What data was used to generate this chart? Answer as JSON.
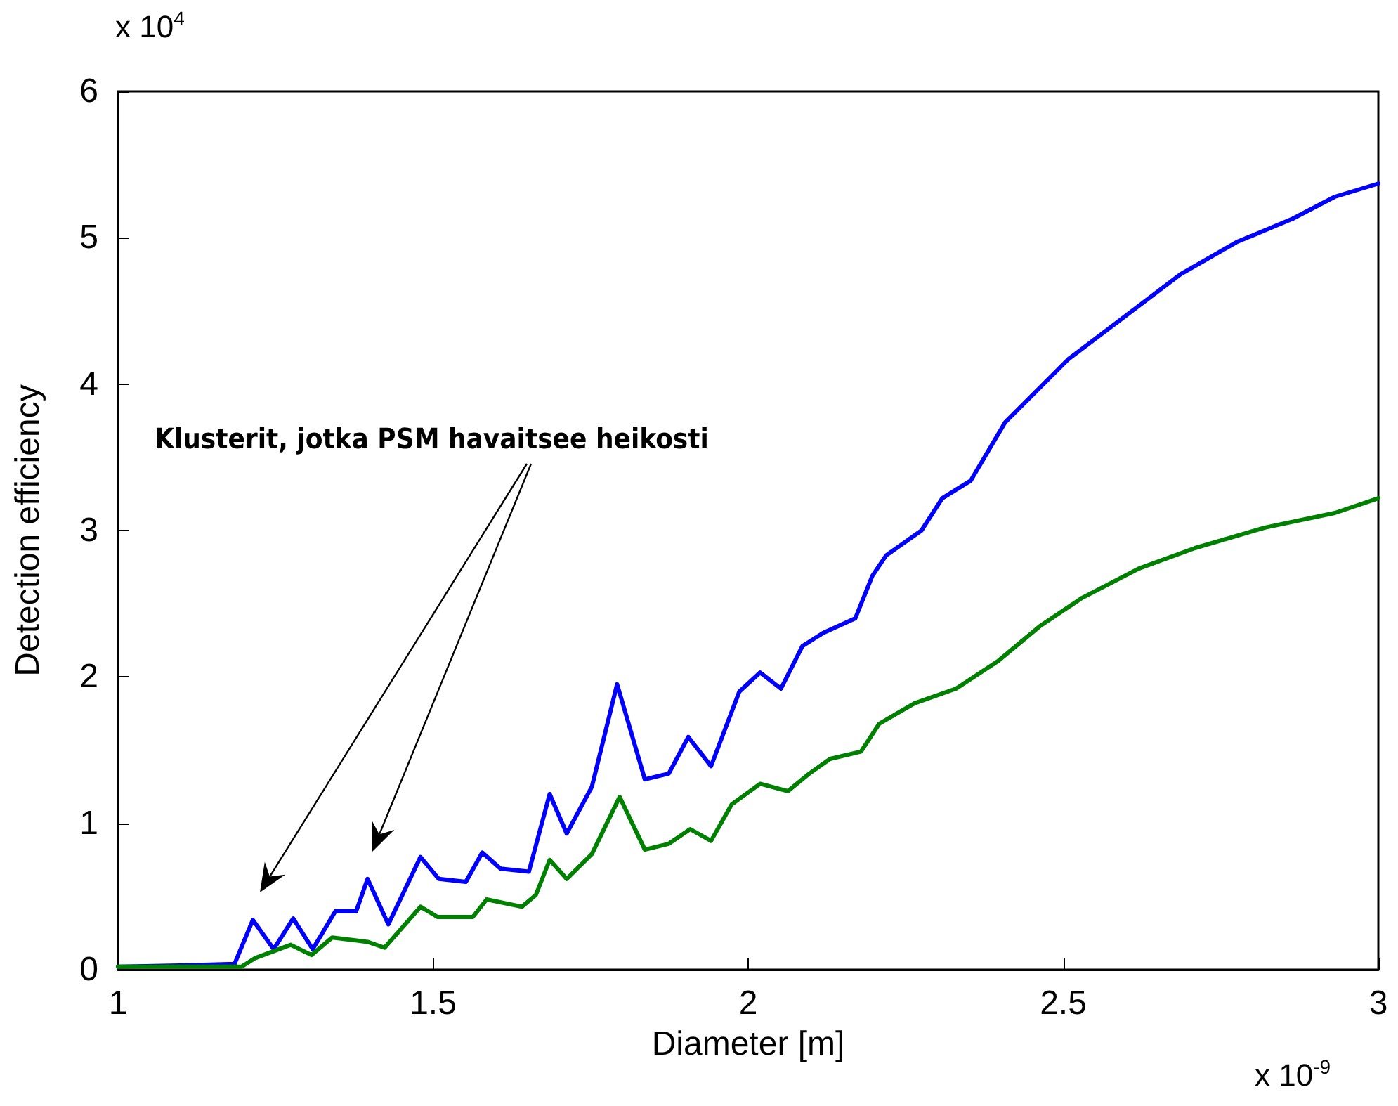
{
  "chart_data": {
    "type": "line",
    "xlabel": "Diameter [m]",
    "ylabel": "Detection efficiency",
    "xlim": [
      1,
      3
    ],
    "xticks": [
      1,
      1.5,
      2,
      2.5,
      3
    ],
    "ylim": [
      0,
      6
    ],
    "yticks": [
      0,
      1,
      2,
      3,
      4,
      5,
      6
    ],
    "grid": false,
    "marker": "none",
    "line_style": "solid",
    "annotations": [
      "Klusterit, jotka PSM havaitsee heikosti",
      "x 10$^{4}$",
      "x 10$^{-9}$"
    ],
    "series": [
      {
        "color": "#0000ff",
        "x": [
          1,
          1.107,
          1.185,
          1.214,
          1.247,
          1.278,
          1.309,
          1.345,
          1.378,
          1.396,
          1.429,
          1.48,
          1.509,
          1.552,
          1.578,
          1.607,
          1.652,
          1.685,
          1.712,
          1.752,
          1.792,
          1.836,
          1.874,
          1.905,
          1.941,
          1.986,
          2.019,
          2.052,
          2.086,
          2.119,
          2.17,
          2.197,
          2.219,
          2.275,
          2.308,
          2.353,
          2.408,
          2.508,
          2.597,
          2.686,
          2.775,
          2.864,
          2.931,
          3.0
        ],
        "values": [
          0.02,
          0.03,
          0.04,
          0.34,
          0.14,
          0.35,
          0.14,
          0.4,
          0.4,
          0.62,
          0.31,
          0.77,
          0.62,
          0.6,
          0.8,
          0.69,
          0.67,
          1.2,
          0.93,
          1.25,
          1.95,
          1.3,
          1.34,
          1.59,
          1.39,
          1.9,
          2.03,
          1.92,
          2.21,
          2.3,
          2.4,
          2.69,
          2.83,
          3.0,
          3.22,
          3.34,
          3.74,
          4.17,
          4.46,
          4.75,
          4.97,
          5.13,
          5.28,
          5.37
        ]
      },
      {
        "color": "#008000",
        "x": [
          1,
          1.196,
          1.218,
          1.274,
          1.307,
          1.34,
          1.396,
          1.423,
          1.48,
          1.507,
          1.563,
          1.585,
          1.641,
          1.663,
          1.685,
          1.712,
          1.752,
          1.796,
          1.836,
          1.874,
          1.908,
          1.941,
          1.974,
          2.019,
          2.063,
          2.097,
          2.13,
          2.179,
          2.208,
          2.264,
          2.33,
          2.397,
          2.464,
          2.53,
          2.62,
          2.709,
          2.82,
          2.931,
          3.0
        ],
        "values": [
          0.02,
          0.02,
          0.08,
          0.17,
          0.1,
          0.22,
          0.19,
          0.15,
          0.43,
          0.36,
          0.36,
          0.48,
          0.43,
          0.51,
          0.75,
          0.62,
          0.79,
          1.18,
          0.82,
          0.86,
          0.96,
          0.88,
          1.13,
          1.27,
          1.22,
          1.34,
          1.44,
          1.49,
          1.68,
          1.82,
          1.92,
          2.11,
          2.35,
          2.54,
          2.74,
          2.88,
          3.02,
          3.12,
          3.22
        ]
      }
    ]
  }
}
